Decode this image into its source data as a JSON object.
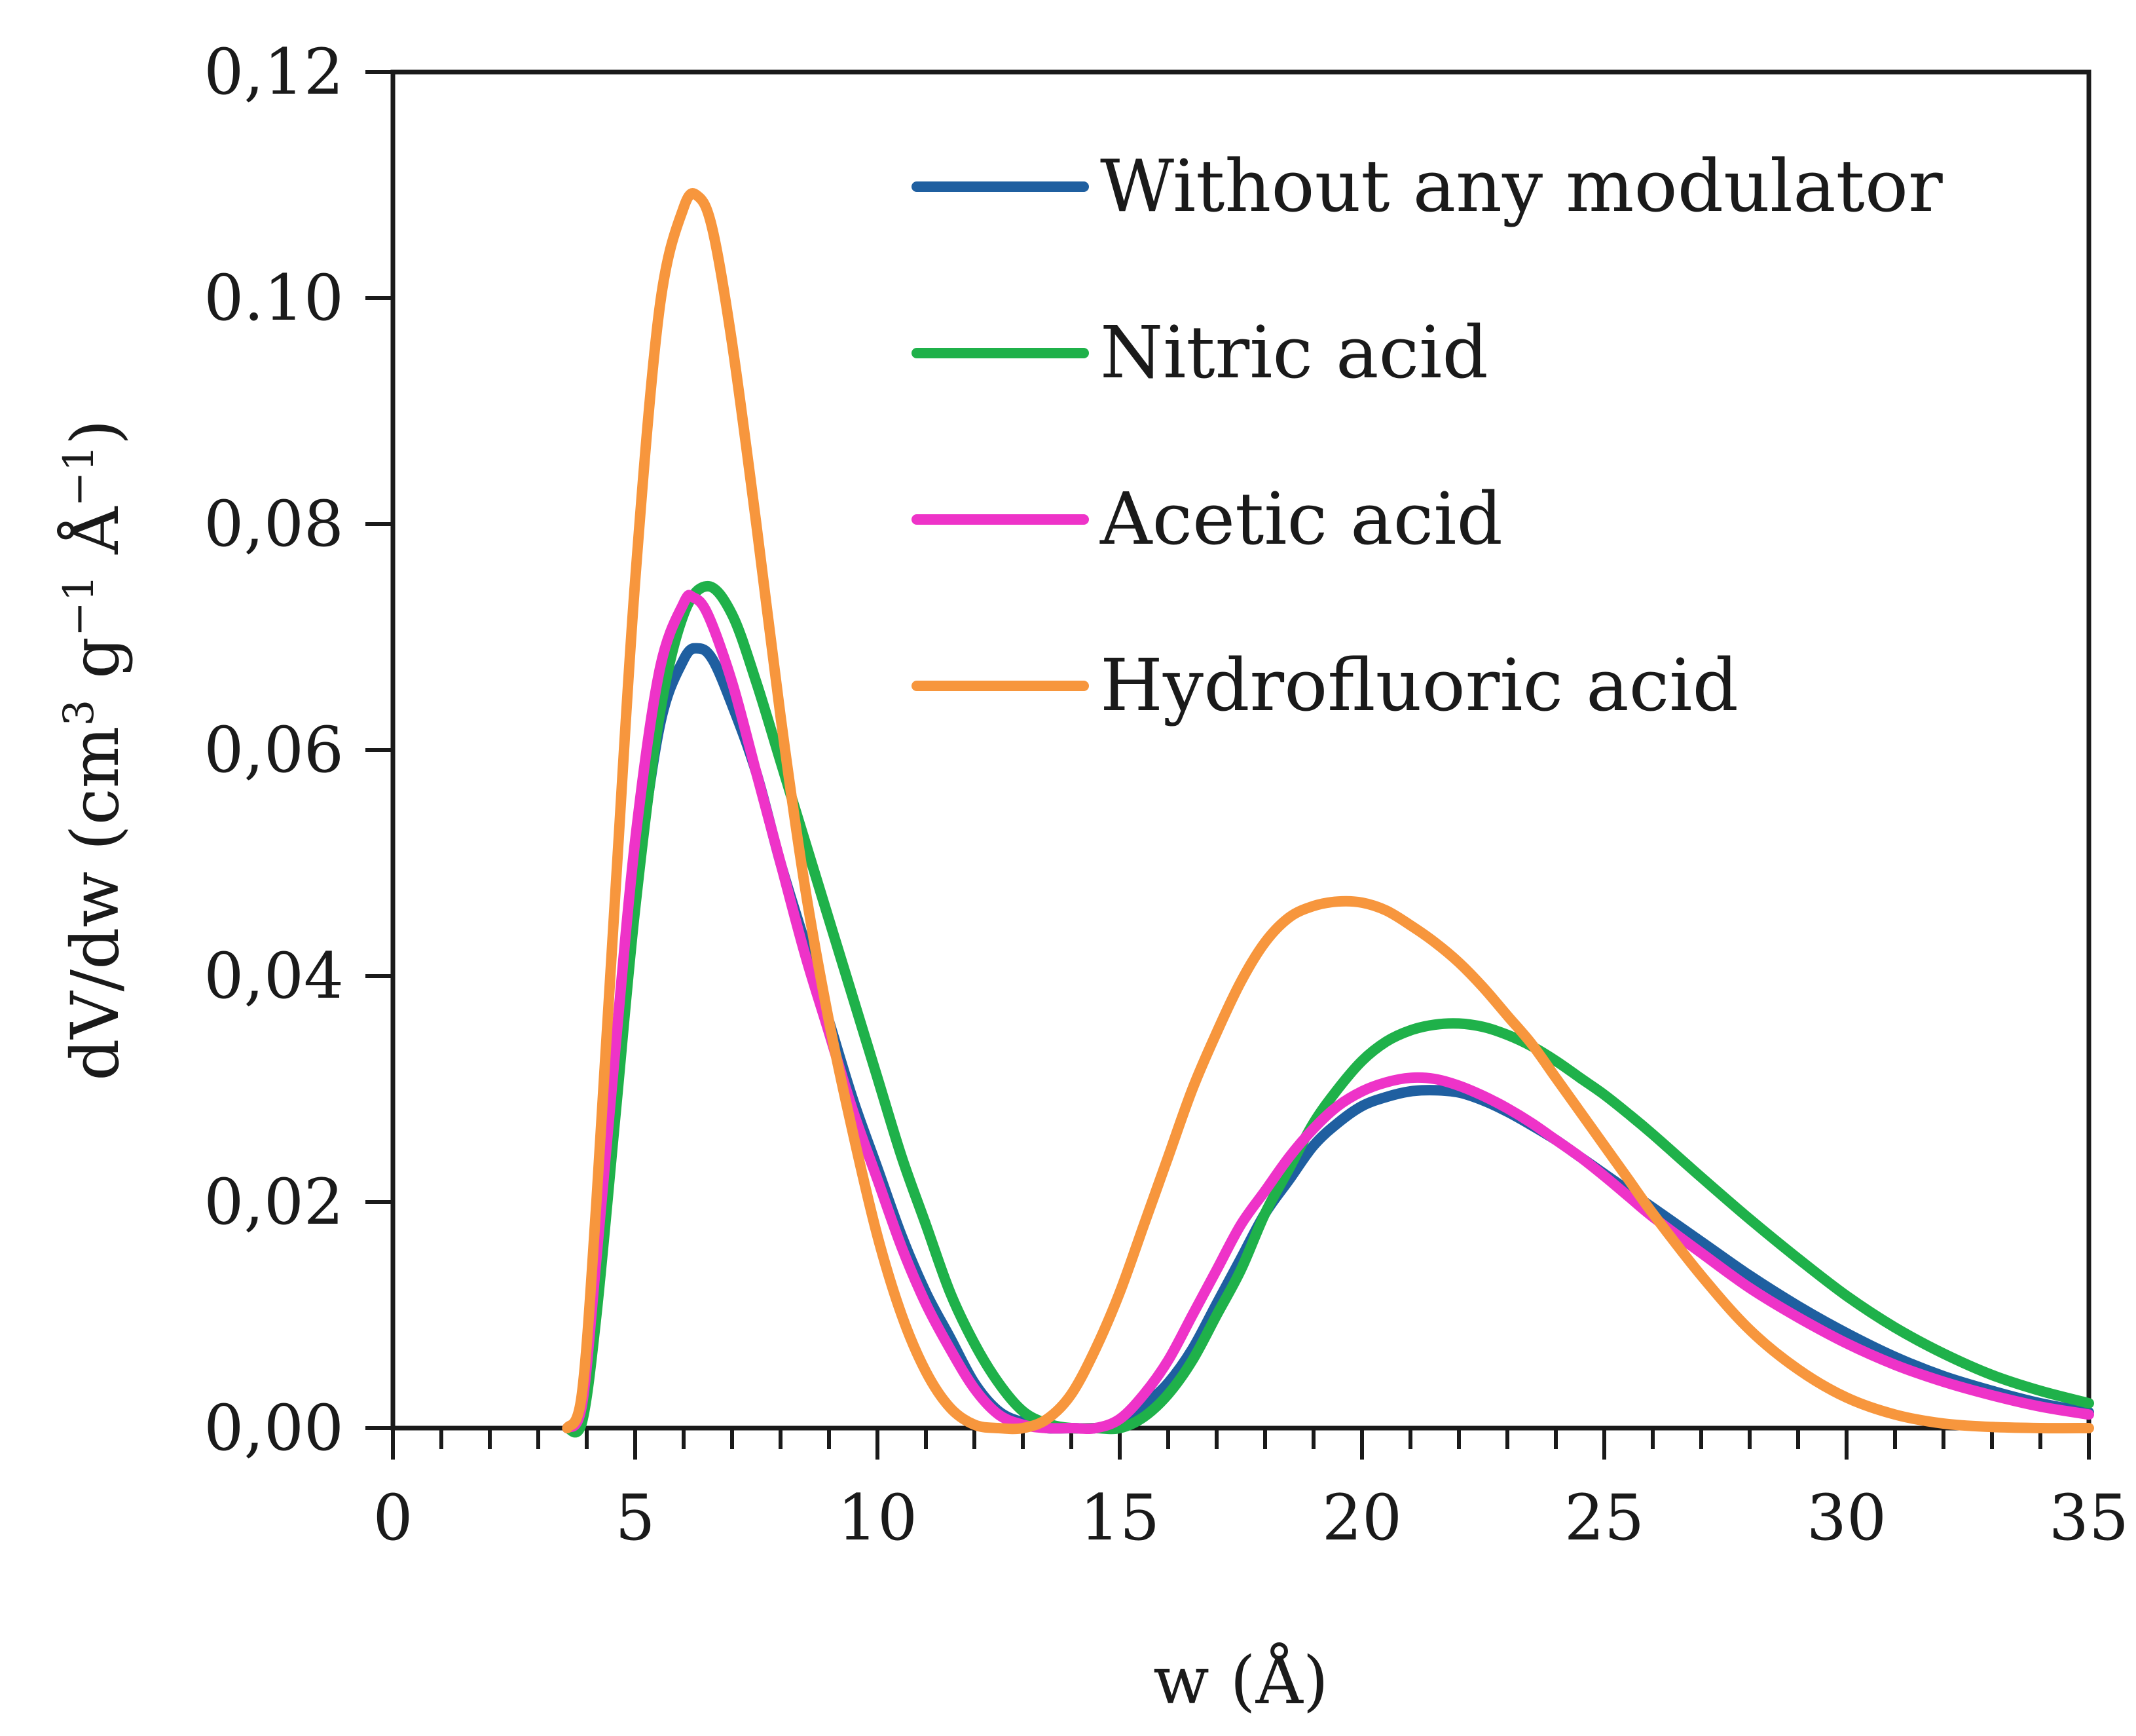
{
  "chart_data": {
    "type": "line",
    "title": "",
    "xlabel": "w (Å)",
    "ylabel_main": "dV/dw (cm",
    "ylabel_sup1": "3",
    "ylabel_g": " g",
    "ylabel_sup2": "−1",
    "ylabel_A": " Å",
    "ylabel_sup3": "−1",
    "ylabel_close": ")",
    "xlim": [
      0,
      35
    ],
    "ylim": [
      0,
      0.12
    ],
    "x_ticks": [
      0,
      5,
      10,
      15,
      20,
      25,
      30,
      35
    ],
    "x_tick_labels": [
      "0",
      "5",
      "10",
      "15",
      "20",
      "25",
      "30",
      "35"
    ],
    "y_ticks": [
      0,
      0.02,
      0.04,
      0.06,
      0.08,
      0.1,
      0.12
    ],
    "y_tick_labels": [
      "0,00",
      "0,02",
      "0,04",
      "0,06",
      "0,08",
      "0.10",
      "0,12"
    ],
    "x_minor_step": 1,
    "grid": false,
    "legend_position": "top-right",
    "series": [
      {
        "name": "Without any modulator",
        "color": "#1f5fa0",
        "x": [
          3.6,
          3.9,
          4.2,
          4.6,
          5.0,
          5.5,
          6.0,
          6.3,
          6.6,
          7.0,
          7.5,
          8.0,
          8.5,
          9.0,
          9.5,
          10.0,
          10.5,
          11.0,
          11.5,
          12.0,
          12.5,
          13.0,
          13.5,
          14.0,
          14.5,
          15.0,
          15.5,
          16.0,
          16.5,
          17.0,
          17.5,
          18.0,
          18.5,
          19.0,
          19.5,
          20.0,
          20.5,
          21.0,
          21.5,
          22.0,
          22.5,
          23.0,
          23.5,
          24.0,
          24.5,
          25.0,
          25.5,
          26.0,
          27.0,
          28.0,
          29.0,
          30.0,
          31.0,
          32.0,
          33.0,
          34.0,
          35.0
        ],
        "values": [
          0.0,
          0.001,
          0.012,
          0.03,
          0.047,
          0.062,
          0.068,
          0.069,
          0.068,
          0.064,
          0.058,
          0.05,
          0.043,
          0.036,
          0.029,
          0.023,
          0.017,
          0.012,
          0.008,
          0.004,
          0.0015,
          0.0005,
          0.0,
          0.0,
          0.0,
          0.0005,
          0.002,
          0.004,
          0.007,
          0.011,
          0.015,
          0.019,
          0.022,
          0.025,
          0.027,
          0.0285,
          0.0293,
          0.0298,
          0.0299,
          0.0297,
          0.029,
          0.028,
          0.0268,
          0.0255,
          0.024,
          0.0225,
          0.021,
          0.0195,
          0.0165,
          0.0135,
          0.0108,
          0.0084,
          0.0063,
          0.0046,
          0.0033,
          0.0022,
          0.0014
        ]
      },
      {
        "name": "Nitric acid",
        "color": "#1fb14a",
        "x": [
          3.6,
          3.9,
          4.2,
          4.6,
          5.0,
          5.5,
          6.0,
          6.5,
          7.0,
          7.5,
          8.0,
          8.5,
          9.0,
          9.5,
          10.0,
          10.5,
          11.0,
          11.5,
          12.0,
          12.5,
          13.0,
          13.5,
          14.0,
          14.5,
          15.0,
          15.5,
          16.0,
          16.5,
          17.0,
          17.5,
          18.0,
          18.5,
          19.0,
          19.5,
          20.0,
          20.5,
          21.0,
          21.5,
          22.0,
          22.5,
          23.0,
          23.5,
          24.0,
          24.5,
          25.0,
          25.5,
          26.0,
          27.0,
          28.0,
          29.0,
          30.0,
          31.0,
          32.0,
          33.0,
          34.0,
          35.0
        ],
        "values": [
          0.0,
          0.0005,
          0.01,
          0.028,
          0.046,
          0.063,
          0.072,
          0.0745,
          0.072,
          0.066,
          0.059,
          0.052,
          0.045,
          0.038,
          0.031,
          0.024,
          0.018,
          0.012,
          0.0075,
          0.004,
          0.0015,
          0.0004,
          0.0,
          0.0,
          0.0,
          0.001,
          0.003,
          0.006,
          0.01,
          0.014,
          0.019,
          0.023,
          0.027,
          0.03,
          0.0325,
          0.0342,
          0.0352,
          0.0357,
          0.0358,
          0.0355,
          0.0348,
          0.0338,
          0.0325,
          0.031,
          0.0295,
          0.0278,
          0.026,
          0.0222,
          0.0185,
          0.015,
          0.0117,
          0.0089,
          0.0066,
          0.0047,
          0.0033,
          0.0022
        ]
      },
      {
        "name": "Acetic acid",
        "color": "#ee33c8",
        "x": [
          3.6,
          3.9,
          4.2,
          4.6,
          5.0,
          5.5,
          6.0,
          6.2,
          6.5,
          7.0,
          7.5,
          8.0,
          8.5,
          9.0,
          9.5,
          10.0,
          10.5,
          11.0,
          11.5,
          12.0,
          12.5,
          13.0,
          13.5,
          14.0,
          14.5,
          15.0,
          15.5,
          16.0,
          16.5,
          17.0,
          17.5,
          18.0,
          18.5,
          19.0,
          19.5,
          20.0,
          20.5,
          21.0,
          21.5,
          22.0,
          22.5,
          23.0,
          23.5,
          24.0,
          24.5,
          25.0,
          25.5,
          26.0,
          27.0,
          28.0,
          29.0,
          30.0,
          31.0,
          32.0,
          33.0,
          34.0,
          35.0
        ],
        "values": [
          0.0,
          0.002,
          0.015,
          0.034,
          0.052,
          0.067,
          0.073,
          0.0735,
          0.072,
          0.066,
          0.058,
          0.05,
          0.042,
          0.035,
          0.028,
          0.022,
          0.016,
          0.011,
          0.007,
          0.0035,
          0.0012,
          0.0003,
          0.0,
          0.0,
          0.0,
          0.0008,
          0.003,
          0.006,
          0.01,
          0.014,
          0.018,
          0.021,
          0.024,
          0.0265,
          0.0285,
          0.0298,
          0.0306,
          0.031,
          0.0309,
          0.0303,
          0.0294,
          0.0283,
          0.027,
          0.0255,
          0.024,
          0.0223,
          0.0205,
          0.0187,
          0.0155,
          0.0124,
          0.0098,
          0.0075,
          0.0056,
          0.0041,
          0.0029,
          0.0019,
          0.0012
        ]
      },
      {
        "name": "Hydrofluoric acid",
        "color": "#f7963d",
        "x": [
          3.6,
          3.9,
          4.2,
          4.6,
          5.0,
          5.5,
          6.0,
          6.3,
          6.6,
          7.0,
          7.5,
          8.0,
          8.5,
          9.0,
          9.5,
          10.0,
          10.5,
          11.0,
          11.5,
          12.0,
          12.5,
          13.0,
          13.5,
          14.0,
          14.5,
          15.0,
          15.5,
          16.0,
          16.5,
          17.0,
          17.5,
          18.0,
          18.5,
          19.0,
          19.5,
          20.0,
          20.5,
          21.0,
          21.5,
          22.0,
          22.5,
          23.0,
          23.5,
          24.0,
          24.5,
          25.0,
          25.5,
          26.0,
          27.0,
          28.0,
          29.0,
          30.0,
          31.0,
          32.0,
          33.0,
          34.0,
          35.0
        ],
        "values": [
          0.0,
          0.003,
          0.02,
          0.048,
          0.075,
          0.099,
          0.108,
          0.109,
          0.106,
          0.096,
          0.08,
          0.063,
          0.048,
          0.036,
          0.026,
          0.017,
          0.01,
          0.005,
          0.0018,
          0.0003,
          0.0,
          0.0,
          0.0008,
          0.003,
          0.007,
          0.012,
          0.018,
          0.024,
          0.03,
          0.035,
          0.0395,
          0.043,
          0.0452,
          0.0462,
          0.0466,
          0.0465,
          0.0458,
          0.0445,
          0.043,
          0.0412,
          0.039,
          0.0365,
          0.034,
          0.031,
          0.028,
          0.025,
          0.022,
          0.019,
          0.0135,
          0.0087,
          0.0052,
          0.0027,
          0.0012,
          0.0004,
          0.0001,
          0.0,
          0.0
        ]
      }
    ]
  }
}
